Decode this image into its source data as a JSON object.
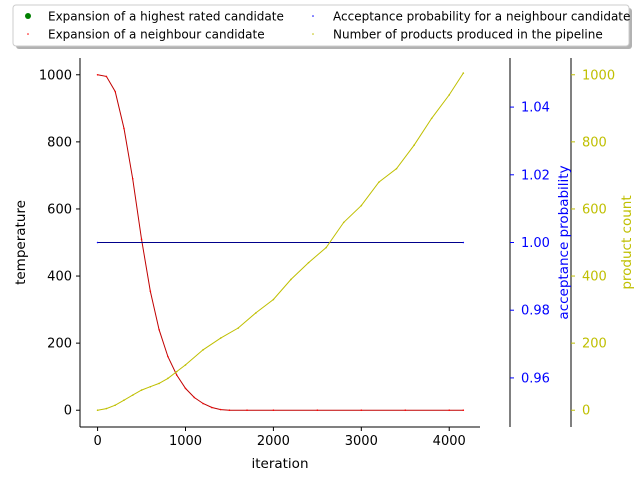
{
  "chart_data": {
    "type": "line",
    "xlabel": "iteration",
    "xlim": [
      -200,
      4350
    ],
    "xticks": [
      0,
      1000,
      2000,
      3000,
      4000
    ],
    "axes": {
      "temperature": {
        "label": "temperature",
        "color": "#000000",
        "ylim": [
          -50,
          1050
        ],
        "ticks": [
          0,
          200,
          400,
          600,
          800,
          1000
        ]
      },
      "acceptance": {
        "label": "acceptance probability",
        "color": "#0000ff",
        "ylim": [
          0.9455,
          1.0545
        ],
        "ticks": [
          "0.96",
          "0.98",
          "1.00",
          "1.02",
          "1.04"
        ]
      },
      "products": {
        "label": "product count",
        "color": "#bfbf00",
        "ylim": [
          -50,
          1050
        ],
        "ticks": [
          0,
          200,
          400,
          600,
          800,
          1000
        ]
      }
    },
    "legend": {
      "placement": "top",
      "entries": [
        {
          "label": "Expansion of a highest rated candidate",
          "color": "#008000",
          "marker": "dot"
        },
        {
          "label": "Acceptance probability for a neighbour candidate",
          "color": "#0000ff",
          "marker": "pixel"
        },
        {
          "label": "Expansion of a neighbour candidate",
          "color": "#ff0000",
          "marker": "pixel"
        },
        {
          "label": "Number of products produced in the pipeline",
          "color": "#bfbf00",
          "marker": "pixel"
        }
      ]
    },
    "series": [
      {
        "name": "Expansion of a neighbour candidate",
        "axis": "temperature",
        "color": "#ff0000",
        "line_color": "#c00000",
        "x": [
          0,
          100,
          200,
          300,
          400,
          500,
          600,
          700,
          800,
          900,
          1000,
          1100,
          1200,
          1300,
          1400,
          1500,
          1700,
          2000,
          2500,
          3000,
          3500,
          4000,
          4160
        ],
        "values": [
          1000,
          995,
          950,
          840,
          690,
          510,
          355,
          240,
          160,
          105,
          65,
          38,
          20,
          8,
          2,
          0,
          0,
          0,
          0,
          0,
          0,
          0,
          0
        ]
      },
      {
        "name": "Acceptance probability for a neighbour candidate",
        "axis": "acceptance",
        "color": "#0000ff",
        "line_color": "#00008b",
        "x": [
          0,
          4160
        ],
        "values": [
          1.0,
          1.0
        ]
      },
      {
        "name": "Number of products produced in the pipeline",
        "axis": "products",
        "color": "#bfbf00",
        "line_color": "#bfbf00",
        "x": [
          0,
          100,
          200,
          300,
          400,
          500,
          600,
          700,
          800,
          900,
          1000,
          1200,
          1400,
          1600,
          1800,
          2000,
          2200,
          2400,
          2600,
          2800,
          3000,
          3200,
          3400,
          3600,
          3800,
          4000,
          4160
        ],
        "values": [
          0,
          5,
          15,
          30,
          45,
          60,
          70,
          80,
          95,
          115,
          135,
          180,
          215,
          245,
          290,
          330,
          390,
          440,
          485,
          560,
          610,
          680,
          720,
          790,
          870,
          940,
          1005
        ]
      }
    ]
  }
}
